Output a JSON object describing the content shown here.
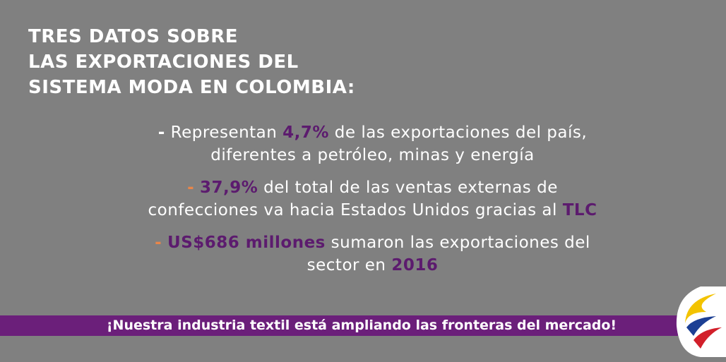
{
  "header": {
    "title_lines": [
      "TRES DATOS SOBRE",
      "LAS EXPORTACIONES DEL",
      "SISTEMA MODA EN COLOMBIA:"
    ]
  },
  "bullets": [
    {
      "dash": "-",
      "dash_color": "#ffffff",
      "lines": [
        [
          {
            "text": "Representan ",
            "emphasis": false
          },
          {
            "text": "4,7%",
            "emphasis": true
          },
          {
            "text": " de las exportaciones del país,",
            "emphasis": false
          }
        ],
        [
          {
            "text": "diferentes a petróleo, minas y energía",
            "emphasis": false
          }
        ]
      ]
    },
    {
      "dash": "-",
      "dash_color": "#e8864a",
      "lines": [
        [
          {
            "text": "37,9%",
            "emphasis": true
          },
          {
            "text": " del total de las ventas externas de",
            "emphasis": false
          }
        ],
        [
          {
            "text": "confecciones va hacia Estados Unidos gracias al ",
            "emphasis": false
          },
          {
            "text": "TLC",
            "emphasis": true
          }
        ]
      ]
    },
    {
      "dash": "-",
      "dash_color": "#e8864a",
      "lines": [
        [
          {
            "text": "US$686 millones",
            "emphasis": true
          },
          {
            "text": " sumaron las exportaciones del",
            "emphasis": false
          }
        ],
        [
          {
            "text": "sector en ",
            "emphasis": false
          },
          {
            "text": "2016",
            "emphasis": true
          }
        ]
      ]
    }
  ],
  "banner": {
    "text": "¡Nuestra industria textil está ampliando las fronteras del mercado!"
  }
}
